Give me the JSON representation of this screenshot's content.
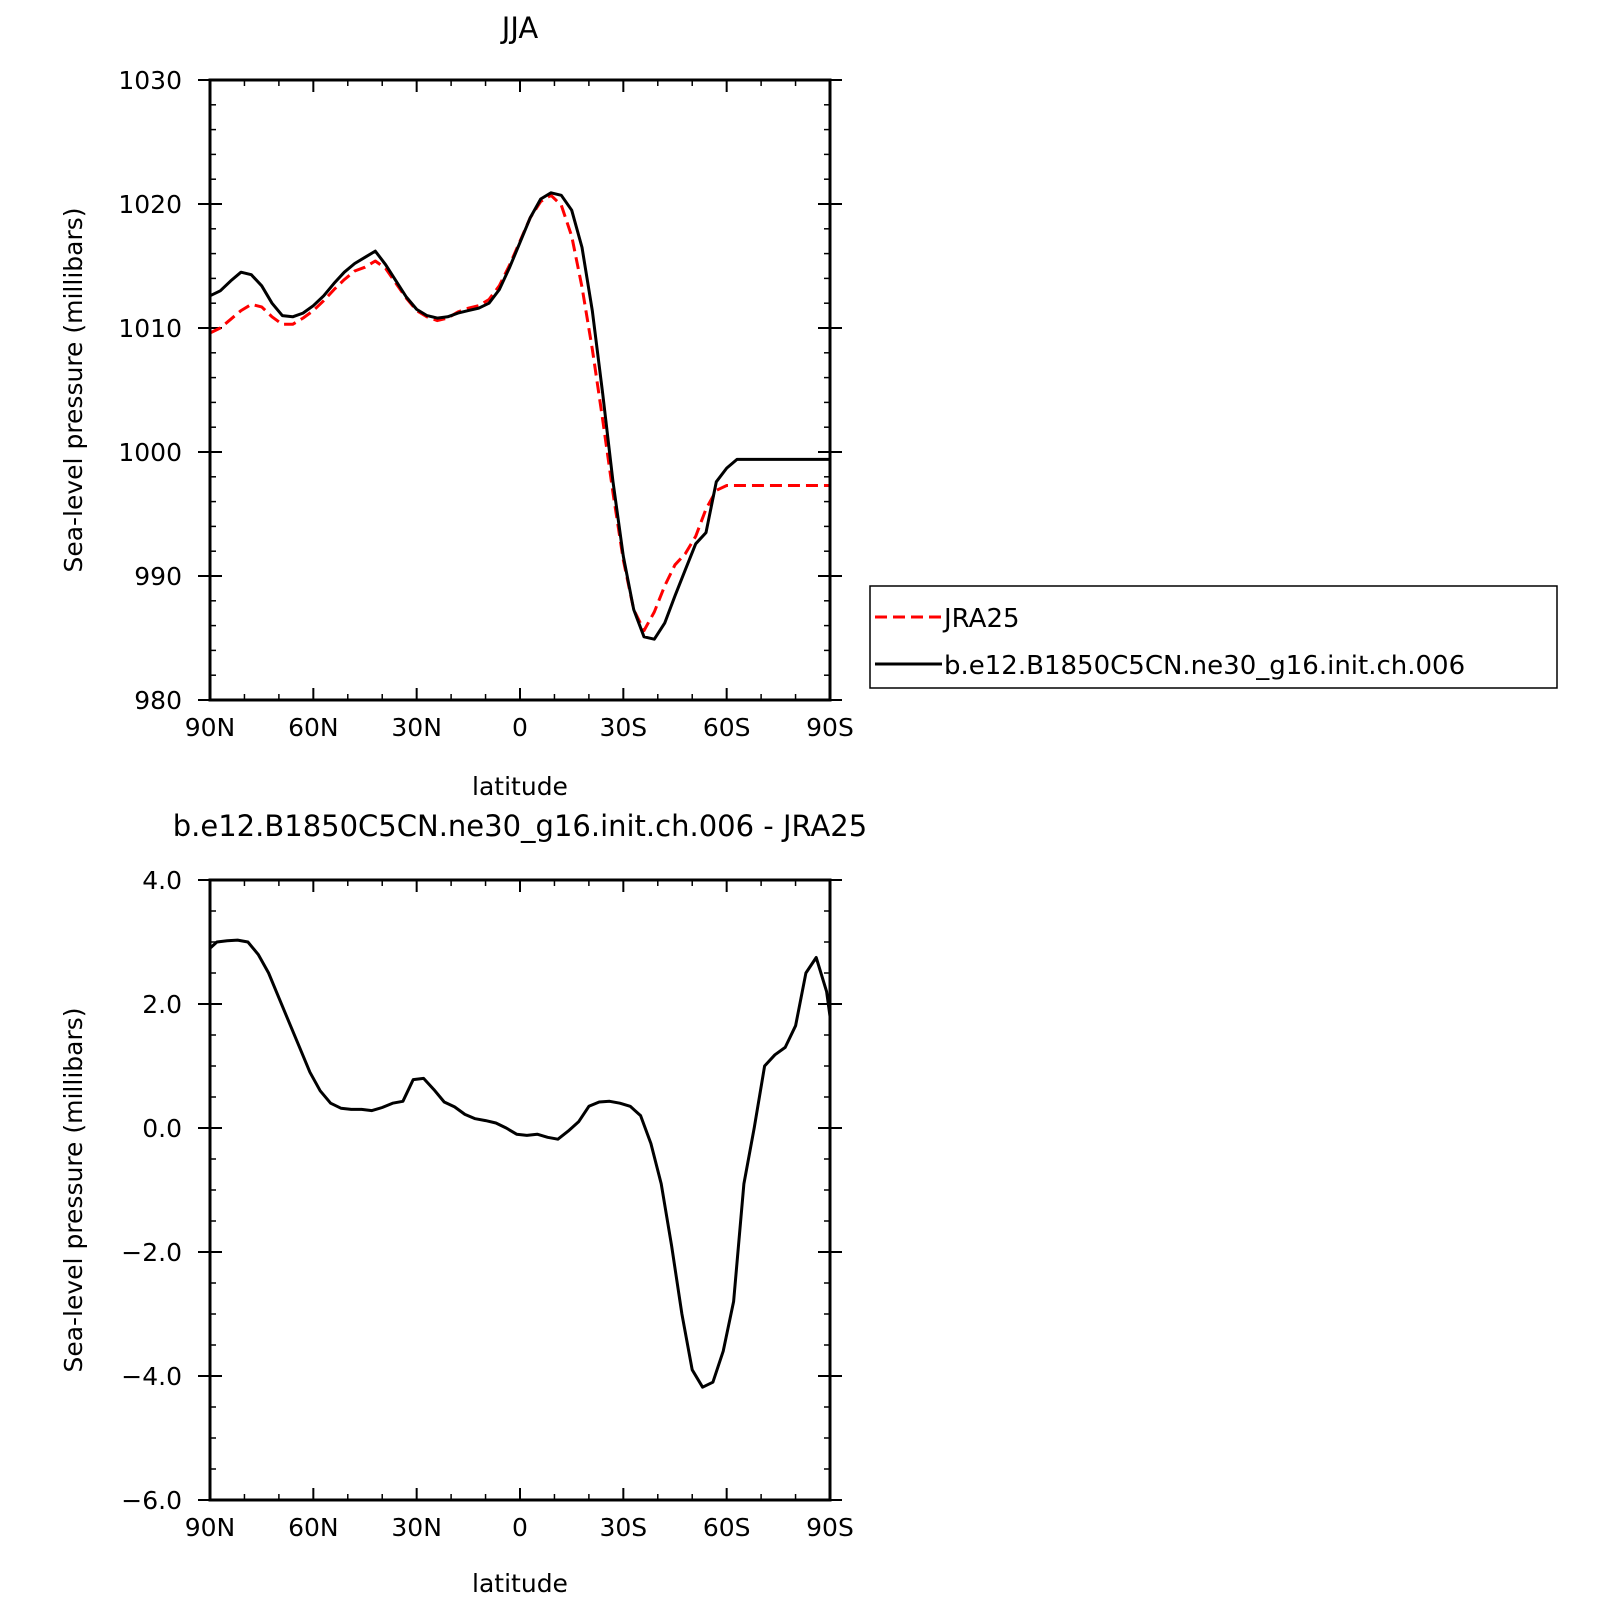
{
  "chart_data": [
    {
      "type": "line",
      "title": "JJA",
      "xlabel": "latitude",
      "ylabel": "Sea-level pressure (millibars)",
      "xlim": [
        90,
        -90
      ],
      "ylim": [
        980,
        1030
      ],
      "xticks": [
        90,
        60,
        30,
        0,
        -30,
        -60,
        -90
      ],
      "xtick_labels": [
        "90N",
        "60N",
        "30N",
        "0",
        "30S",
        "60S",
        "90S"
      ],
      "yticks": [
        980,
        990,
        1000,
        1010,
        1020,
        1030
      ],
      "ytick_labels": [
        "980",
        "990",
        "1000",
        "1010",
        "1020",
        "1030"
      ],
      "grid": false,
      "legend_position": "outside-right",
      "series": [
        {
          "name": "JRA25",
          "color": "#ff0000",
          "dash": "dashed",
          "x": [
            90,
            87,
            84,
            81,
            78,
            75,
            72,
            69,
            66,
            63,
            60,
            57,
            54,
            51,
            48,
            45,
            42,
            39,
            36,
            33,
            30,
            27,
            24,
            21,
            18,
            15,
            12,
            9,
            6,
            3,
            0,
            -3,
            -6,
            -9,
            -12,
            -15,
            -18,
            -21,
            -24,
            -27,
            -30,
            -33,
            -36,
            -39,
            -42,
            -45,
            -48,
            -51,
            -54,
            -57,
            -60,
            -63,
            -66,
            -69,
            -72,
            -75,
            -78,
            -81,
            -84,
            -87,
            -90
          ],
          "values": [
            1009.6,
            1010.0,
            1010.7,
            1011.4,
            1011.9,
            1011.7,
            1010.9,
            1010.3,
            1010.3,
            1010.8,
            1011.4,
            1012.2,
            1013.1,
            1013.9,
            1014.6,
            1014.9,
            1015.4,
            1014.8,
            1013.6,
            1012.4,
            1011.4,
            1010.9,
            1010.6,
            1010.8,
            1011.3,
            1011.6,
            1011.8,
            1012.3,
            1013.4,
            1015.1,
            1017.0,
            1018.9,
            1020.2,
            1020.7,
            1019.9,
            1017.4,
            1013.3,
            1008.3,
            1002.6,
            996.7,
            991.3,
            987.3,
            985.6,
            987.1,
            989.2,
            990.9,
            991.8,
            993.2,
            995.4,
            996.9,
            997.3,
            997.3,
            997.3,
            997.3,
            997.3,
            997.3,
            997.3,
            997.3,
            997.3,
            997.3,
            997.3
          ]
        },
        {
          "name": "b.e12.B1850C5CN.ne30_g16.init.ch.006",
          "color": "#000000",
          "dash": "solid",
          "x": [
            90,
            87,
            84,
            81,
            78,
            75,
            72,
            69,
            66,
            63,
            60,
            57,
            54,
            51,
            48,
            45,
            42,
            39,
            36,
            33,
            30,
            27,
            24,
            21,
            18,
            15,
            12,
            9,
            6,
            3,
            0,
            -3,
            -6,
            -9,
            -12,
            -15,
            -18,
            -21,
            -24,
            -27,
            -30,
            -33,
            -36,
            -39,
            -42,
            -45,
            -48,
            -51,
            -54,
            -57,
            -60,
            -63,
            -66,
            -69,
            -72,
            -75,
            -78,
            -81,
            -84,
            -87,
            -90
          ],
          "values": [
            1012.6,
            1013.0,
            1013.8,
            1014.5,
            1014.3,
            1013.4,
            1012.0,
            1011.0,
            1010.9,
            1011.2,
            1011.8,
            1012.6,
            1013.6,
            1014.5,
            1015.2,
            1015.7,
            1016.2,
            1015.1,
            1013.8,
            1012.5,
            1011.5,
            1011.0,
            1010.8,
            1010.9,
            1011.2,
            1011.4,
            1011.6,
            1012.0,
            1013.1,
            1014.9,
            1016.9,
            1018.9,
            1020.4,
            1020.9,
            1020.7,
            1019.5,
            1016.5,
            1011.4,
            1004.7,
            997.6,
            991.6,
            987.3,
            985.1,
            984.9,
            986.2,
            988.4,
            990.5,
            992.6,
            993.5,
            997.6,
            998.7,
            999.4,
            999.4,
            999.4,
            999.4,
            999.4,
            999.4,
            999.4,
            999.4,
            999.4,
            999.4
          ]
        }
      ]
    },
    {
      "type": "line",
      "title": "b.e12.B1850C5CN.ne30_g16.init.ch.006 - JRA25",
      "xlabel": "latitude",
      "ylabel": "Sea-level pressure (millibars)",
      "xlim": [
        90,
        -90
      ],
      "ylim": [
        -6.0,
        4.0
      ],
      "xticks": [
        90,
        60,
        30,
        0,
        -30,
        -60,
        -90
      ],
      "xtick_labels": [
        "90N",
        "60N",
        "30N",
        "0",
        "30S",
        "60S",
        "90S"
      ],
      "yticks": [
        -6.0,
        -4.0,
        -2.0,
        0.0,
        2.0,
        4.0
      ],
      "ytick_labels": [
        "−6.0",
        "−4.0",
        "−2.0",
        "0.0",
        "2.0",
        "4.0"
      ],
      "grid": false,
      "series": [
        {
          "color": "#000000",
          "dash": "solid",
          "x": [
            90,
            88,
            85,
            82,
            79,
            76,
            73,
            70,
            67,
            64,
            61,
            58,
            55,
            52,
            49,
            46,
            43,
            40,
            37,
            34,
            31,
            28,
            25,
            22,
            19,
            16,
            13,
            10,
            7,
            4,
            1,
            -2,
            -5,
            -8,
            -11,
            -14,
            -17,
            -20,
            -23,
            -26,
            -29,
            -32,
            -35,
            -38,
            -41,
            -44,
            -47,
            -50,
            -53,
            -56,
            -59,
            -62,
            -65,
            -68,
            -71,
            -74,
            -77,
            -80,
            -83,
            -86,
            -89,
            -90
          ],
          "values": [
            2.9,
            3.0,
            3.02,
            3.03,
            3.0,
            2.8,
            2.5,
            2.1,
            1.7,
            1.3,
            0.9,
            0.6,
            0.4,
            0.32,
            0.3,
            0.3,
            0.28,
            0.33,
            0.4,
            0.43,
            0.78,
            0.8,
            0.62,
            0.42,
            0.34,
            0.22,
            0.15,
            0.12,
            0.08,
            0.0,
            -0.1,
            -0.12,
            -0.1,
            -0.15,
            -0.18,
            -0.05,
            0.1,
            0.35,
            0.42,
            0.43,
            0.4,
            0.35,
            0.2,
            -0.25,
            -0.9,
            -1.9,
            -3.0,
            -3.9,
            -4.18,
            -4.1,
            -3.6,
            -2.8,
            -0.9,
            0.0,
            1.0,
            1.18,
            1.3,
            1.65,
            2.5,
            2.75,
            2.2,
            1.8
          ]
        }
      ]
    }
  ]
}
